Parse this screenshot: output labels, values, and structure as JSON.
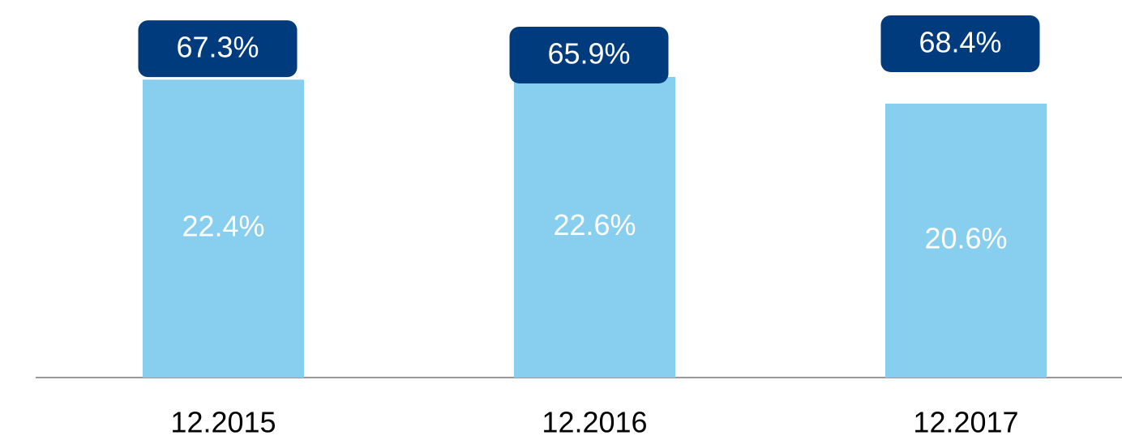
{
  "chart_data": {
    "type": "bar",
    "categories": [
      "12.2015",
      "12.2016",
      "12.2017"
    ],
    "values": [
      22.4,
      22.6,
      20.6
    ],
    "value_labels": [
      "22.4%",
      "22.6%",
      "20.6%"
    ],
    "color": "#87CEEF",
    "callouts": {
      "values": [
        67.3,
        65.9,
        68.4
      ],
      "value_labels": [
        "67.3%",
        "65.9%",
        "68.4%"
      ],
      "color": "#003B7E"
    }
  }
}
